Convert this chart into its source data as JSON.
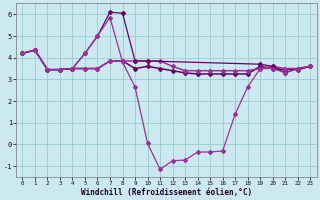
{
  "xlabel": "Windchill (Refroidissement éolien,°C)",
  "bg_color": "#cce8f0",
  "grid_color": "#99cccc",
  "line_color1": "#993399",
  "line_color2": "#660066",
  "xlim": [
    -0.5,
    23.5
  ],
  "ylim": [
    -1.5,
    6.5
  ],
  "yticks": [
    -1,
    0,
    1,
    2,
    3,
    4,
    5,
    6
  ],
  "xticks": [
    0,
    1,
    2,
    3,
    4,
    5,
    6,
    7,
    8,
    9,
    10,
    11,
    12,
    13,
    14,
    15,
    16,
    17,
    18,
    19,
    20,
    21,
    22,
    23
  ],
  "s1_x": [
    0,
    1,
    2,
    3,
    4,
    5,
    6,
    7,
    8,
    9,
    10,
    11,
    12,
    13,
    14,
    15,
    16,
    17,
    18,
    19,
    20,
    21,
    22,
    23
  ],
  "s1_y": [
    4.2,
    4.35,
    3.45,
    3.45,
    3.5,
    4.2,
    5.0,
    5.85,
    3.8,
    2.65,
    0.05,
    -1.15,
    -0.75,
    -0.72,
    -0.35,
    -0.35,
    -0.3,
    1.4,
    2.65,
    3.5,
    3.5,
    3.3,
    3.5,
    3.6
  ],
  "s2_x": [
    0,
    1,
    2,
    3,
    4,
    5,
    6,
    7,
    8,
    9,
    10,
    19,
    20,
    21,
    22,
    23
  ],
  "s2_y": [
    4.2,
    4.35,
    3.45,
    3.45,
    3.5,
    4.2,
    5.0,
    6.1,
    6.05,
    3.85,
    3.85,
    3.7,
    3.6,
    3.3,
    3.5,
    3.6
  ],
  "s3_x": [
    0,
    1,
    2,
    3,
    4,
    5,
    6,
    7,
    8,
    9,
    10,
    11,
    12,
    13,
    14,
    15,
    16,
    17,
    18,
    19,
    20,
    21,
    22,
    23
  ],
  "s3_y": [
    4.2,
    4.35,
    3.45,
    3.45,
    3.5,
    3.5,
    3.5,
    3.85,
    3.85,
    3.85,
    3.85,
    3.85,
    3.6,
    3.4,
    3.4,
    3.4,
    3.4,
    3.4,
    3.4,
    3.5,
    3.6,
    3.5,
    3.5,
    3.6
  ],
  "s4_x": [
    0,
    1,
    2,
    3,
    4,
    5,
    6,
    7,
    8,
    9,
    10,
    11,
    12,
    13,
    14,
    15,
    16,
    17,
    18,
    19,
    20,
    21,
    22,
    23
  ],
  "s4_y": [
    4.2,
    4.35,
    3.45,
    3.45,
    3.5,
    3.5,
    3.5,
    3.85,
    3.85,
    3.5,
    3.6,
    3.5,
    3.4,
    3.3,
    3.25,
    3.25,
    3.25,
    3.25,
    3.25,
    3.6,
    3.5,
    3.45,
    3.45,
    3.6
  ]
}
